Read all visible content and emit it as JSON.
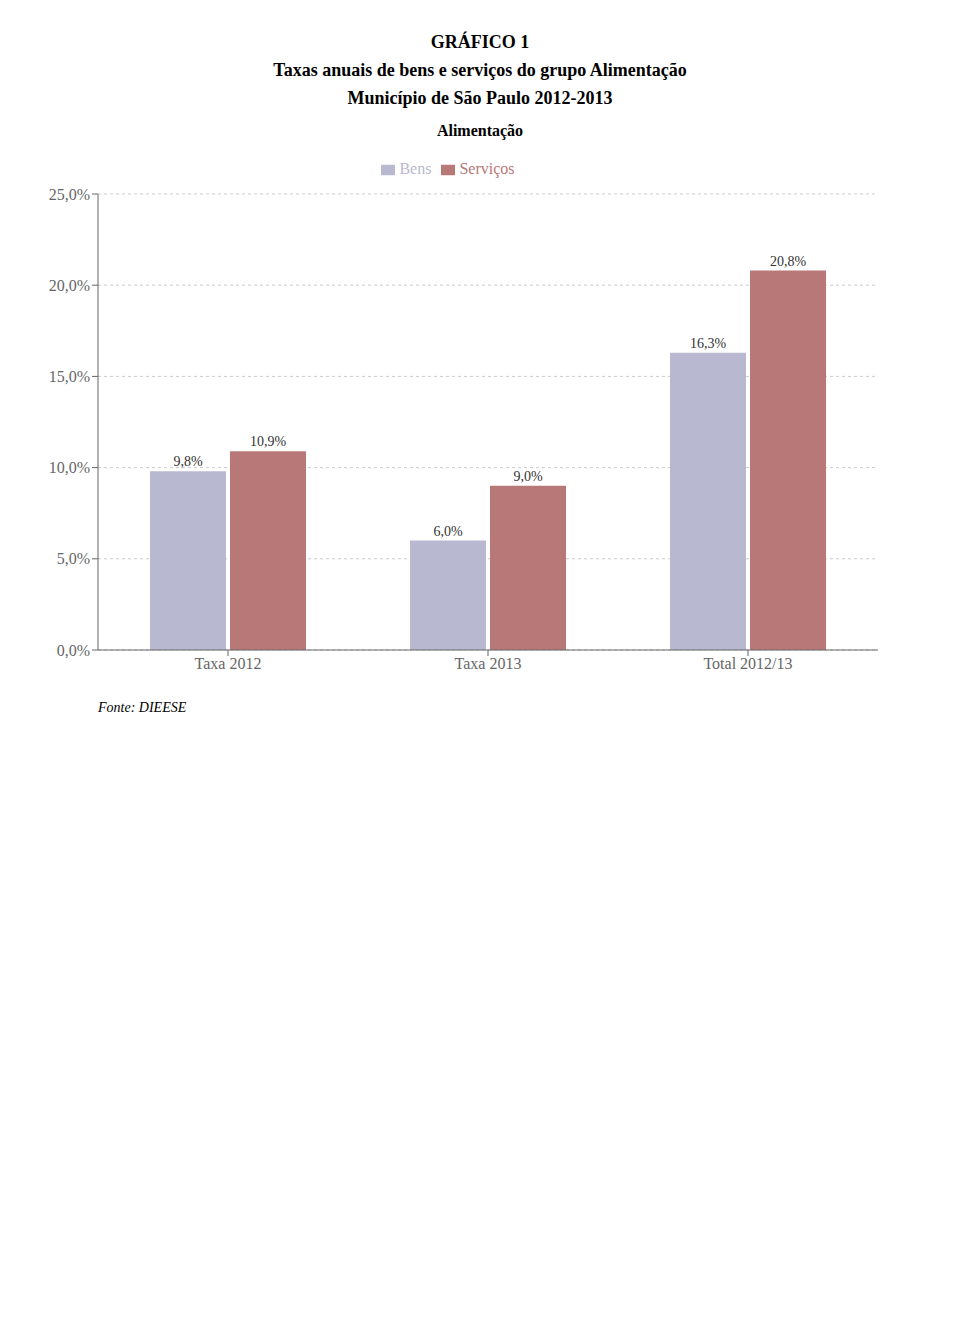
{
  "chart_data": {
    "type": "bar",
    "title": "GRÁFICO 1\nTaxas anuais de bens e serviços do grupo Alimentação\nMunicípio de São Paulo 2012-2013",
    "subtitle": "Alimentação",
    "annotations": [
      "Fonte: DIEESE"
    ],
    "categories": [
      "Taxa 2012",
      "Taxa 2013",
      "Total 2012/13"
    ],
    "series": [
      {
        "name": "Bens",
        "color": "#b8b8d0",
        "values": [
          9.8,
          6.0,
          16.3
        ],
        "value_labels": [
          "9,8%",
          "6,0%",
          "16,3%"
        ]
      },
      {
        "name": "Serviços",
        "color": "#b87878",
        "values": [
          10.9,
          9.0,
          20.8
        ],
        "value_labels": [
          "10,9%",
          "9,0%",
          "20,8%"
        ]
      }
    ],
    "ylim": [
      0,
      25
    ],
    "yticks": [
      {
        "value": 0,
        "label": "0,0%"
      },
      {
        "value": 5,
        "label": "5,0%"
      },
      {
        "value": 10,
        "label": "10,0%"
      },
      {
        "value": 15,
        "label": "15,0%"
      },
      {
        "value": 20,
        "label": "20,0%"
      },
      {
        "value": 25,
        "label": "25,0%"
      }
    ],
    "grid": true,
    "legend": "top",
    "data_labels": true
  }
}
